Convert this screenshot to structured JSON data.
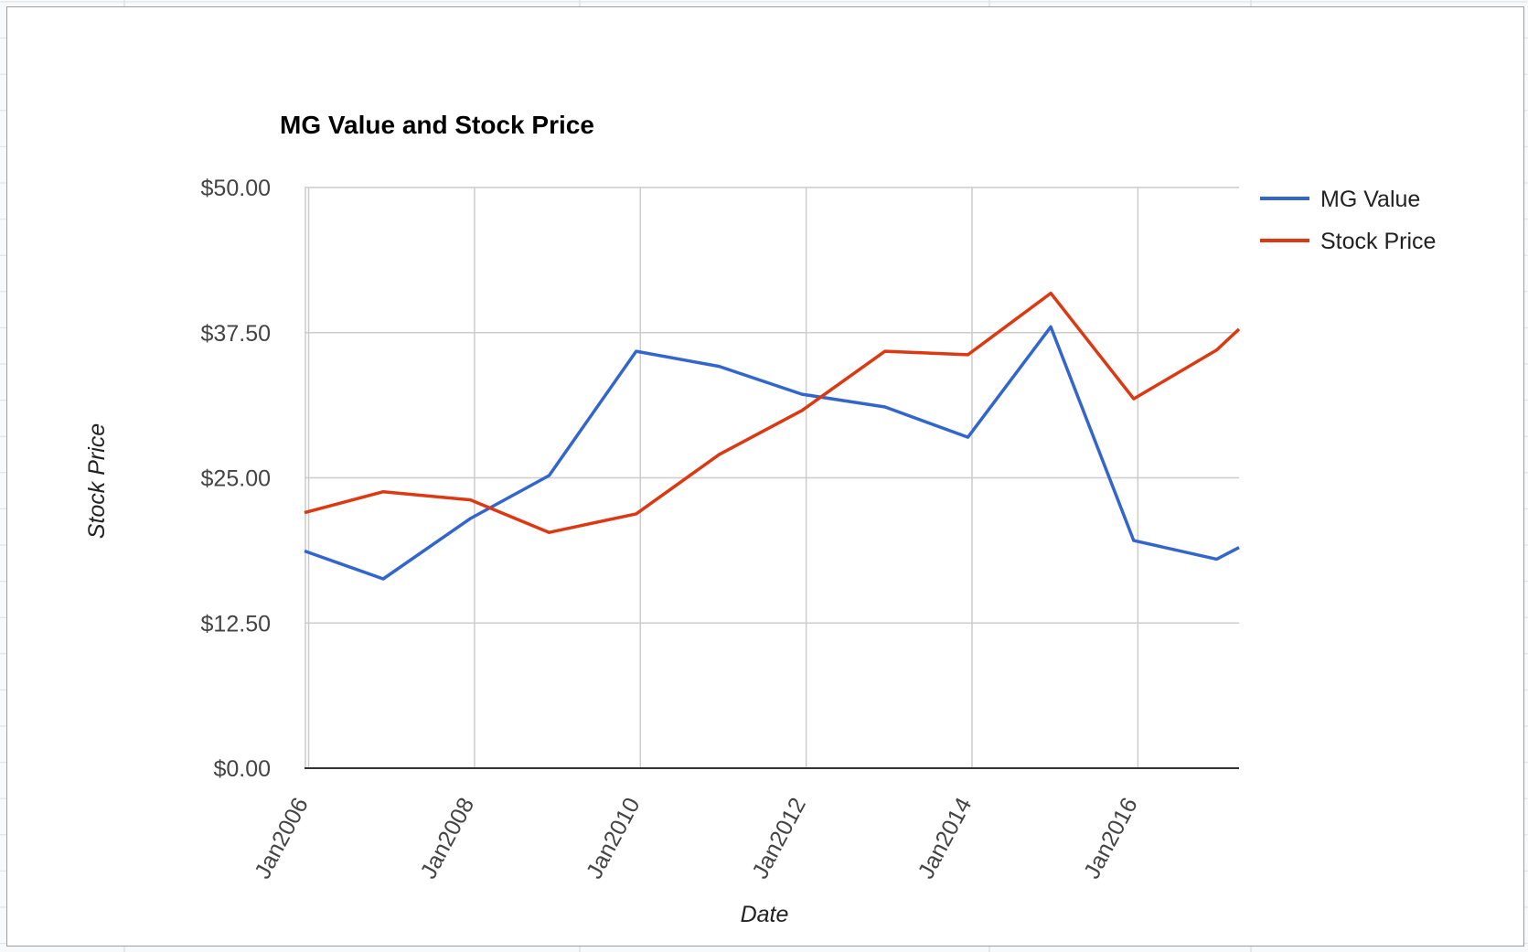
{
  "chart_data": {
    "type": "line",
    "title": "MG Value and Stock Price",
    "xlabel": "Date",
    "ylabel": "Stock Price",
    "x": [
      "Jan2006",
      "Jan2007",
      "Jan2008",
      "Jan2009",
      "Jan2010",
      "Jan2011",
      "Jan2012",
      "Jan2013",
      "Jan2014",
      "Jan2015",
      "Jan2016",
      "Jan2017",
      "Jan2017.3"
    ],
    "x_numeric": [
      2005.95,
      2006.9,
      2007.95,
      2008.9,
      2009.95,
      2010.95,
      2011.95,
      2012.95,
      2013.95,
      2014.95,
      2015.95,
      2016.95,
      2017.22
    ],
    "x_ticks": [
      "Jan2006",
      "Jan2008",
      "Jan2010",
      "Jan2012",
      "Jan2014",
      "Jan2016"
    ],
    "x_tick_values": [
      2006,
      2008,
      2010,
      2012,
      2014,
      2016
    ],
    "xlim": [
      2005.95,
      2017.22
    ],
    "ylim": [
      0,
      50
    ],
    "y_ticks": [
      "$0.00",
      "$12.50",
      "$25.00",
      "$37.50",
      "$50.00"
    ],
    "y_tick_values": [
      0,
      12.5,
      25,
      37.5,
      50
    ],
    "grid": true,
    "legend_position": "right",
    "series": [
      {
        "name": "MG Value",
        "color": "#3366cc",
        "values": [
          18.7,
          16.3,
          21.5,
          25.2,
          35.9,
          34.6,
          32.2,
          31.1,
          28.5,
          38.0,
          19.6,
          18.0,
          19.0
        ]
      },
      {
        "name": "Stock Price",
        "color": "#dc3912",
        "values": [
          22.0,
          23.8,
          23.1,
          20.3,
          21.9,
          27.0,
          30.8,
          35.9,
          35.6,
          40.9,
          31.8,
          36.0,
          37.8
        ]
      }
    ]
  }
}
